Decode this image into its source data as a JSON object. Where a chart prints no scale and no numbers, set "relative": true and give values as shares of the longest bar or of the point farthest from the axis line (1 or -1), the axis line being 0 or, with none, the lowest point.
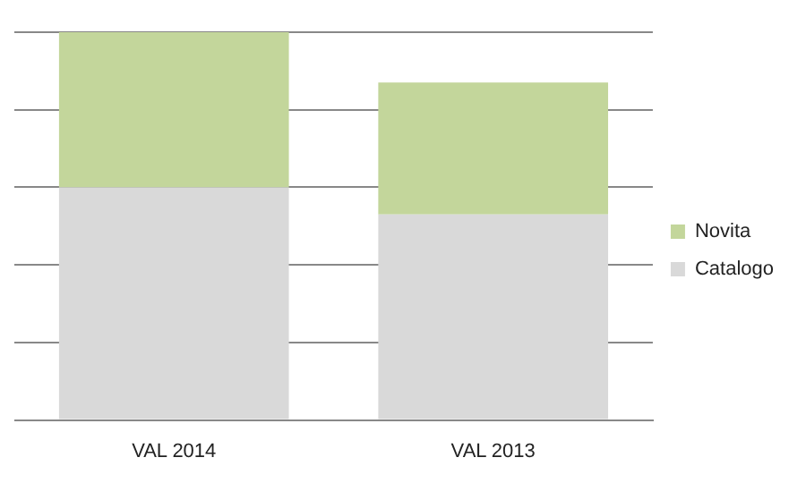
{
  "chart_data": {
    "type": "bar",
    "stacked": true,
    "relative": true,
    "categories": [
      "VAL 2014",
      "VAL 2013"
    ],
    "series": [
      {
        "name": "Catalogo",
        "color": "#d9d9d9",
        "values": [
          0.6,
          0.53
        ]
      },
      {
        "name": "Novita",
        "color": "#c3d69b",
        "values": [
          0.4,
          0.34
        ]
      }
    ],
    "grid": "y",
    "legend": "right"
  }
}
